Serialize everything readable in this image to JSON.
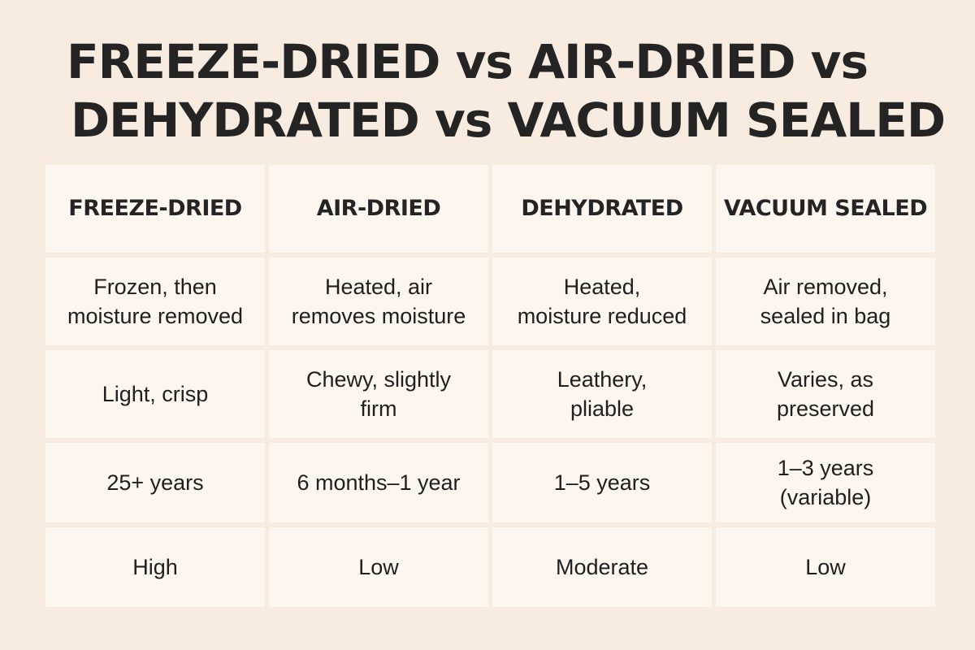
{
  "title": {
    "line1": "FREEZE-DRIED vs AIR-DRIED vs",
    "line2": "DEHYDRATED vs VACUUM SEALED"
  },
  "table": {
    "headers": [
      "FREEZE-DRIED",
      "AIR-DRIED",
      "DEHYDRATED",
      "VACUUM SEALED"
    ],
    "rows": [
      [
        "Frozen, then\nmoisture removed",
        "Heated, air\nremoves moisture",
        "Heated,\nmoisture reduced",
        "Air removed,\nsealed in bag"
      ],
      [
        "Light, crisp",
        "Chewy, slightly\nfirm",
        "Leathery,\npliable",
        "Varies, as\npreserved"
      ],
      [
        "25+ years",
        "6 months–1 year",
        "1–5 years",
        "1–3 years\n(variable)"
      ],
      [
        "High",
        "Low",
        "Moderate",
        "Low"
      ]
    ]
  },
  "colors": {
    "background": "#f8ece0",
    "cell": "#fdf6ee",
    "text": "#222222"
  }
}
